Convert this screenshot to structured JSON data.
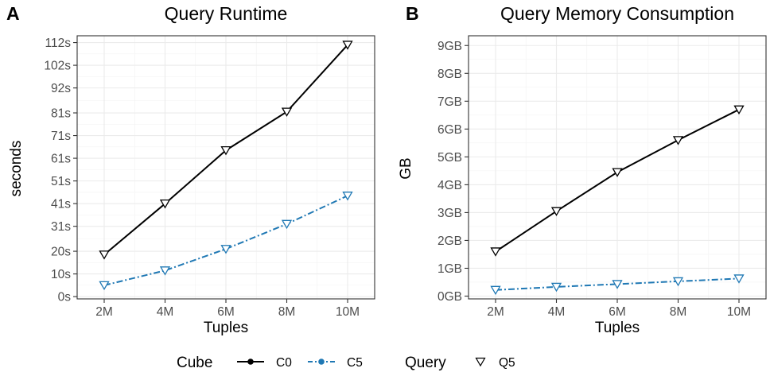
{
  "chart_data": [
    {
      "type": "line",
      "tag": "A",
      "title": "Query Runtime",
      "xlabel": "Tuples",
      "ylabel": "seconds",
      "categories": [
        "2M",
        "4M",
        "6M",
        "8M",
        "10M"
      ],
      "ylim": [
        -1,
        115
      ],
      "yticks": [
        0,
        10,
        20,
        31,
        41,
        51,
        61,
        71,
        81,
        92,
        102,
        112
      ],
      "ytick_labels": [
        "0s",
        "10s",
        "20s",
        "31s",
        "41s",
        "51s",
        "61s",
        "71s",
        "81s",
        "92s",
        "102s",
        "112s"
      ],
      "grid": true,
      "series": [
        {
          "name": "C0",
          "color": "#000000",
          "dash": "solid",
          "marker": "Q5",
          "values": [
            18.5,
            41,
            64.5,
            81.5,
            111
          ]
        },
        {
          "name": "C5",
          "color": "#1f78b4",
          "dash": "dashdot",
          "marker": "Q5",
          "values": [
            5,
            11.5,
            21,
            32,
            44.5
          ]
        }
      ]
    },
    {
      "type": "line",
      "tag": "B",
      "title": "Query Memory Consumption",
      "xlabel": "Tuples",
      "ylabel": "GB",
      "categories": [
        "2M",
        "4M",
        "6M",
        "8M",
        "10M"
      ],
      "ylim": [
        -0.1,
        9.35
      ],
      "yticks": [
        0,
        1,
        2,
        3,
        4,
        5,
        6,
        7,
        8,
        9
      ],
      "ytick_labels": [
        "0GB",
        "1GB",
        "2GB",
        "3GB",
        "4GB",
        "5GB",
        "6GB",
        "7GB",
        "8GB",
        "9GB"
      ],
      "grid": true,
      "series": [
        {
          "name": "C0",
          "color": "#000000",
          "dash": "solid",
          "marker": "Q5",
          "values": [
            1.6,
            3.05,
            4.45,
            5.6,
            6.7
          ]
        },
        {
          "name": "C5",
          "color": "#1f78b4",
          "dash": "dashdot",
          "marker": "Q5",
          "values": [
            0.22,
            0.33,
            0.43,
            0.53,
            0.63
          ]
        }
      ]
    }
  ],
  "legend": {
    "position": "bottom",
    "cube_title": "Cube",
    "cube_items": [
      {
        "label": "C0",
        "color": "#000000",
        "dash": "solid"
      },
      {
        "label": "C5",
        "color": "#1f78b4",
        "dash": "dashdot"
      }
    ],
    "query_title": "Query",
    "query_items": [
      {
        "label": "Q5",
        "marker": "down-triangle"
      }
    ]
  }
}
